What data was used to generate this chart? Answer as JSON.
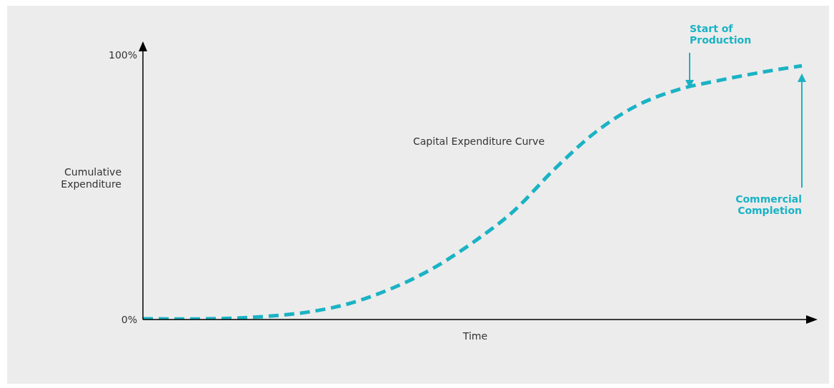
{
  "chart_data": {
    "type": "line",
    "xlabel": "Time",
    "ylabel": "Cumulative\nExpenditure",
    "categories": [
      null,
      null,
      null,
      null,
      null,
      null,
      null,
      null,
      null,
      null,
      null,
      null,
      null,
      null,
      null,
      null,
      null
    ],
    "series": [
      {
        "name": "Capital Expenditure Curve",
        "color": "#1ab3c4",
        "values": [
          0.3,
          0.2,
          0.4,
          1.2,
          2.8,
          6,
          11.5,
          19,
          29,
          41,
          57,
          71,
          81,
          87,
          90.5,
          93.5,
          96
        ]
      }
    ],
    "ylim": [
      0,
      102
    ],
    "yticks": [
      {
        "value": 0,
        "label": "0%"
      },
      {
        "value": 100,
        "label": "100%"
      }
    ],
    "tick_labels": "y",
    "marker": "none",
    "line_style": "dashed",
    "annotations": [
      "Start of\nProduction",
      "Commercial\nCompletion"
    ]
  }
}
